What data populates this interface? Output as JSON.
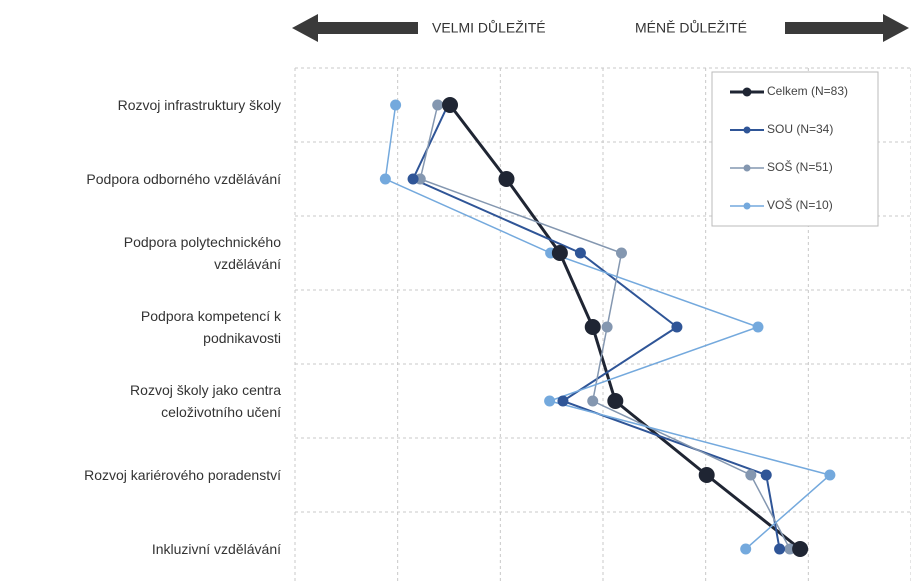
{
  "chart_data": {
    "type": "line",
    "orientation": "horizontal",
    "direction_labels": [
      "VELMI DŮLEŽITÉ",
      "MÉNĚ DŮLEŽITÉ"
    ],
    "categories": [
      "Rozvoj infrastruktury školy",
      "Podpora odborného vzdělávání",
      "Podpora polytechnického\nvzdělávání",
      "Podpora kompetencí k\npodnikavosti",
      "Rozvoj školy jako centra\nceloživotního učení",
      "Rozvoj kariérového poradenství",
      "Inkluzivní vzdělávání"
    ],
    "series": [
      {
        "name": "Celkem (N=83)",
        "color": "#1f2533",
        "values": [
          2.51,
          3.06,
          3.58,
          3.9,
          4.12,
          5.01,
          5.92
        ]
      },
      {
        "name": "SOU (N=34)",
        "color": "#2f5597",
        "values": [
          2.49,
          2.15,
          3.78,
          4.72,
          3.61,
          5.59,
          5.72
        ]
      },
      {
        "name": "SOŠ (N=51)",
        "color": "#8497b0",
        "values": [
          2.39,
          2.22,
          4.18,
          4.04,
          3.9,
          5.44,
          5.82
        ]
      },
      {
        "name": "VOŠ (N=10)",
        "color": "#74a9dd",
        "values": [
          1.98,
          1.88,
          3.49,
          5.51,
          3.48,
          6.21,
          5.39
        ]
      }
    ],
    "xlim": [
      1,
      7
    ],
    "xticks": [
      1,
      2,
      3,
      4,
      5,
      6,
      7
    ],
    "grid": true,
    "legend": "upper right"
  }
}
